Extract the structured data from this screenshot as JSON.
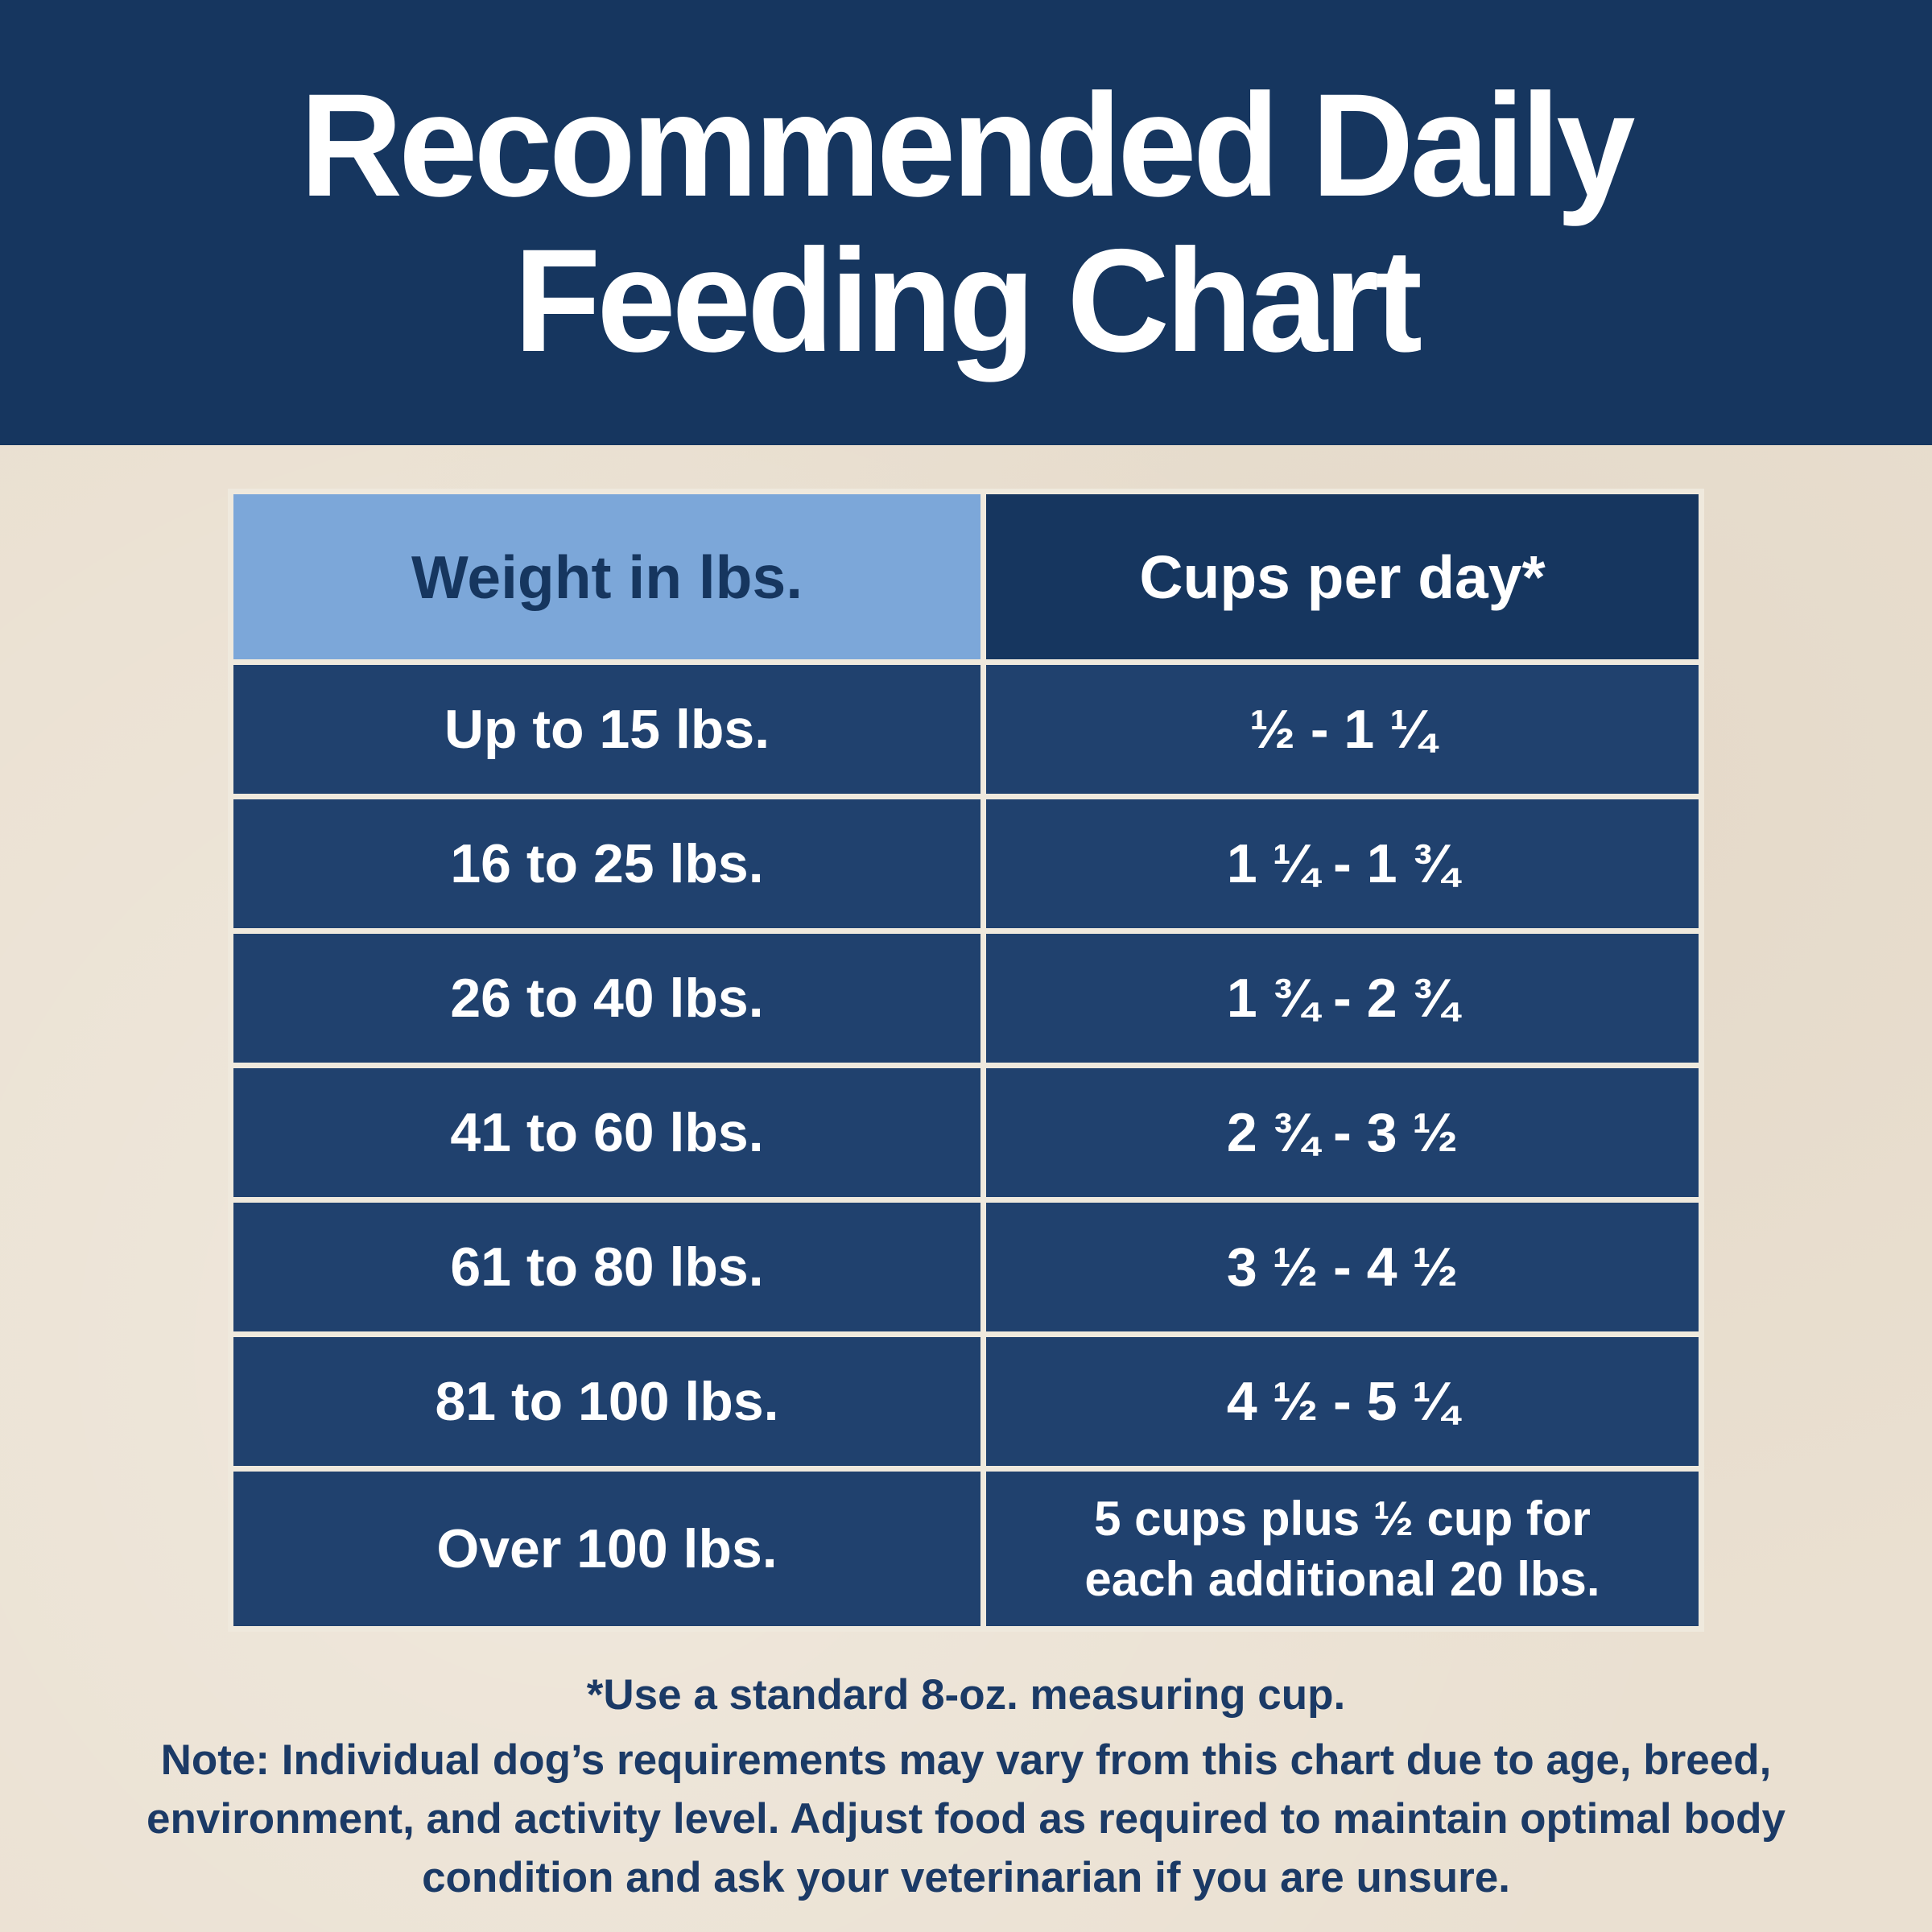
{
  "banner": {
    "title_line1": "Recommended Daily",
    "title_line2": "Feeding Chart"
  },
  "footnotes": {
    "measuring_cup": "*Use a standard 8-oz. measuring cup.",
    "note": "Note: Individual dog’s requirements may vary from this chart due to age, breed, environment, and activity level. Adjust food as required to maintain optimal body condition and ask your veterinarian if you are unsure."
  },
  "colors": {
    "banner_navy": "#16365f",
    "row_navy": "#20416e",
    "header_light_blue": "#7ca7d9",
    "background_beige": "#eae0d1",
    "divider_light": "#efe9dd",
    "text_white": "#ffffff",
    "text_navy": "#1b3a66"
  },
  "chart_data": {
    "type": "table",
    "title": "Recommended Daily Feeding Chart",
    "columns": [
      "Weight in lbs.",
      "Cups per day*"
    ],
    "rows": [
      [
        "Up to 15 lbs.",
        "½ - 1 ¼"
      ],
      [
        "16 to 25 lbs.",
        "1 ¼ - 1 ¾"
      ],
      [
        "26 to 40 lbs.",
        "1 ¾ - 2 ¾"
      ],
      [
        "41 to 60 lbs.",
        "2 ¾ - 3 ½"
      ],
      [
        "61 to 80 lbs.",
        "3 ½ - 4 ½"
      ],
      [
        "81 to 100 lbs.",
        "4 ½ - 5 ¼"
      ],
      [
        "Over 100 lbs.",
        "5 cups plus ½ cup for each additional 20 lbs."
      ]
    ]
  }
}
